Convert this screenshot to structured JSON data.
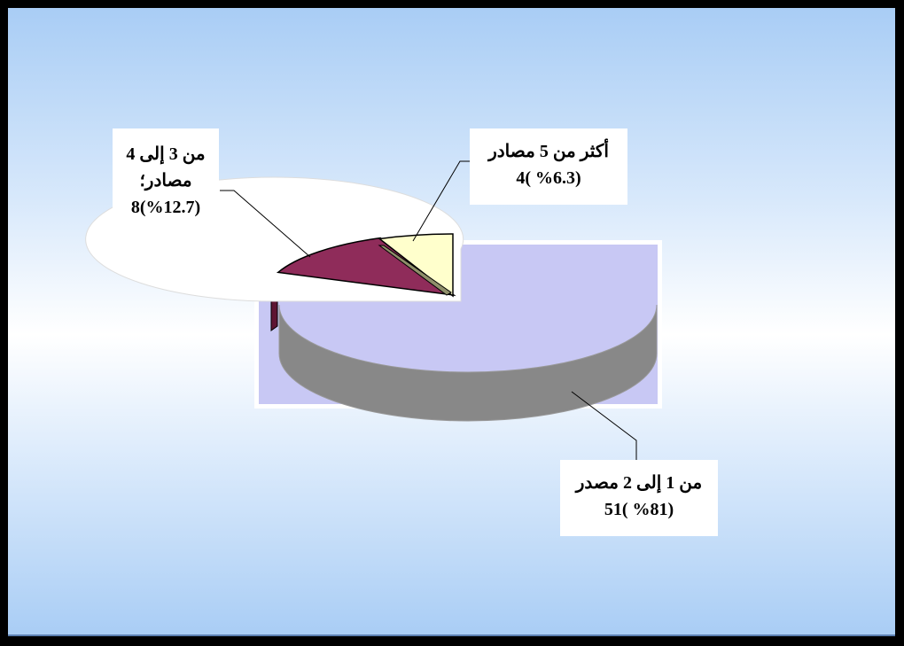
{
  "colors": {
    "frame": "#000000",
    "plot_area": "#c8c8f4",
    "slice_1_2": "#ffffff",
    "slice_1_2_side": "#888888",
    "slice_3_4": "#8f2c5a",
    "slice_3_4_side": "#5e1533",
    "slice_5plus": "#ffffcc",
    "slice_5plus_side": "#8f8f6a"
  },
  "chart_data": {
    "type": "pie",
    "style": "3d-exploded",
    "categories": [
      "من 1 إلى 2 مصدر",
      "من 3 إلى 4 مصادر",
      "أكثر من 5 مصادر"
    ],
    "values": [
      51,
      8,
      4
    ],
    "percentages": [
      81,
      12.7,
      6.3
    ],
    "data_labels": [
      [
        "من 1 إلى 2 مصدر",
        "(%81 )51"
      ],
      [
        "من 3 إلى 4",
        "مصادر؛",
        "(%12.7)8"
      ],
      [
        "أكثر من 5 مصادر",
        "(%6.3 )4"
      ]
    ],
    "legend": "none"
  }
}
